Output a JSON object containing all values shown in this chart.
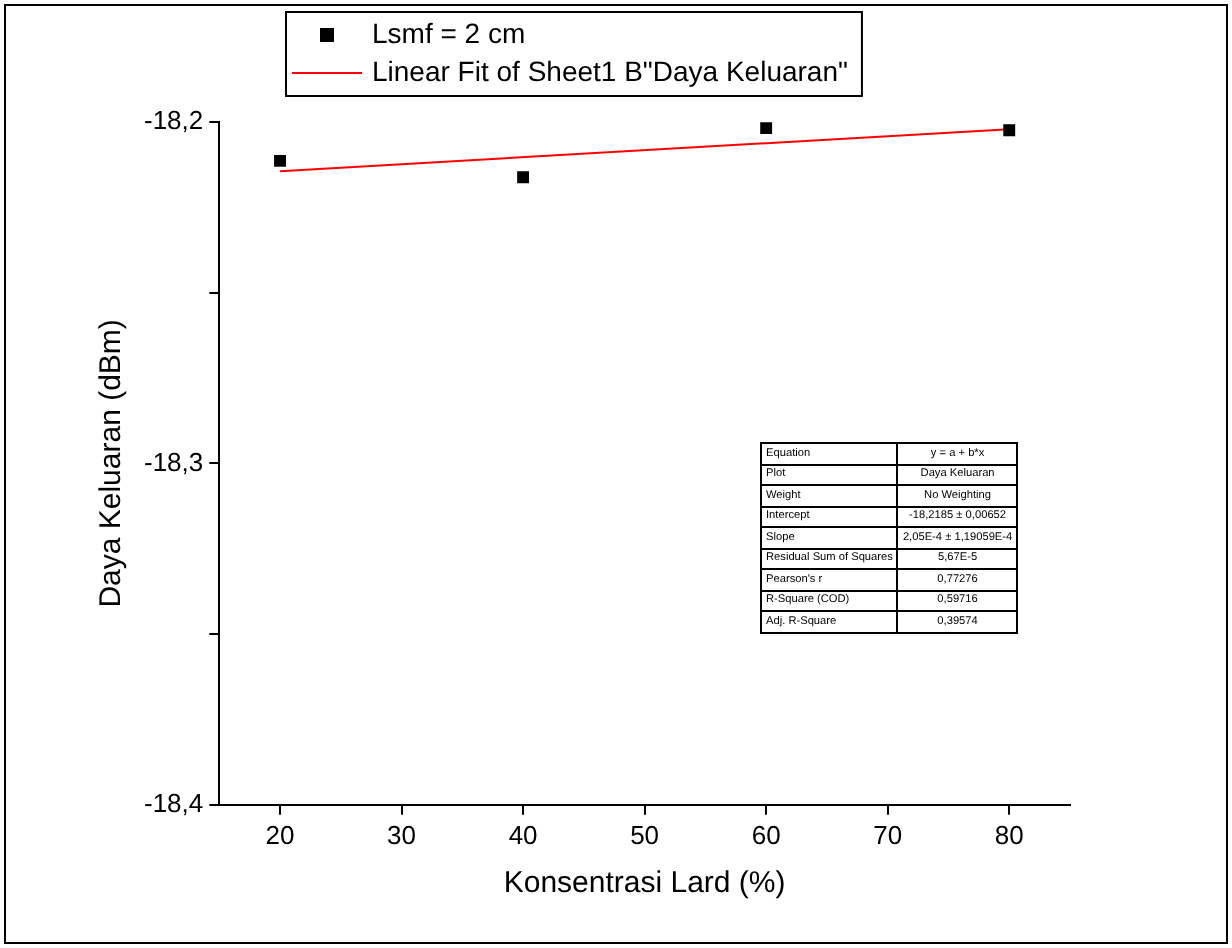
{
  "chart_data": {
    "type": "scatter",
    "xlabel": "Konsentrasi Lard (%)",
    "ylabel": "Daya Keluaran (dBm)",
    "x": [
      20,
      40,
      60,
      80
    ],
    "series": [
      {
        "name": "Lsmf = 2 cm",
        "color": "#000000",
        "values": [
          -18.2114,
          -18.2162,
          -18.2018,
          -18.2024
        ],
        "marker": "square"
      },
      {
        "name": "Linear Fit of Sheet1 B\"Daya Keluaran\"",
        "type": "line",
        "color": "#ff0000",
        "x": [
          20,
          80
        ],
        "values": [
          -18.2144,
          -18.2021
        ],
        "marker": "none",
        "line_style": "solid"
      }
    ],
    "xlim": [
      15,
      85
    ],
    "xticks": [
      20,
      30,
      40,
      50,
      60,
      70,
      80
    ],
    "ylim": [
      -18.4,
      -18.2
    ],
    "yticks": [
      {
        "value": -18.4,
        "label": "-18,4"
      },
      {
        "value": -18.35,
        "label": null
      },
      {
        "value": -18.3,
        "label": "-18,3"
      },
      {
        "value": -18.25,
        "label": null
      },
      {
        "value": -18.2,
        "label": "-18,2"
      }
    ],
    "grid": false,
    "legend": "top",
    "annotations": [
      "Equation",
      "y = a + b*x",
      "Plot",
      "Daya Keluaran",
      "Weight",
      "No Weighting",
      "Intercept",
      "-18,2185 ± 0,00652",
      "Slope",
      "2,05E-4 ± 1,19059E-4",
      "Residual Sum of Squares",
      "5,67E-5",
      "Pearson's r",
      "0,77276",
      "R-Square (COD)",
      "0,59716",
      "Adj. R-Square",
      "0,39574"
    ]
  }
}
